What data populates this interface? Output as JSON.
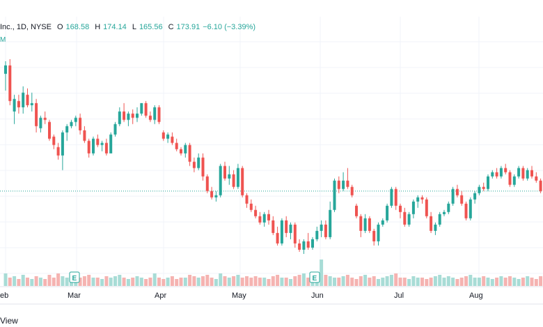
{
  "legend": {
    "symbol": "Inc., 1D, NYSE",
    "o_label": "O",
    "o_value": "168.58",
    "h_label": "H",
    "h_value": "174.14",
    "l_label": "L",
    "l_value": "165.56",
    "c_label": "C",
    "c_value": "173.91",
    "change": "−6.10 (−3.39%)",
    "volume_flag": "M"
  },
  "footer": {
    "text": "View"
  },
  "colors": {
    "up": "#26a69a",
    "down": "#ef5350",
    "grid": "#f0f3fa",
    "last_price_line": "#26a69a"
  },
  "chart_data": {
    "type": "candlestick",
    "title": "",
    "x_tick_labels": [
      "eb",
      "Mar",
      "Apr",
      "May",
      "Jun",
      "Jul",
      "Aug"
    ],
    "earnings_markers": [
      {
        "label": "E",
        "after_month": "Mar"
      },
      {
        "label": "E",
        "after_month": "May"
      }
    ],
    "candles": [
      {
        "o": 196,
        "h": 202,
        "l": 188,
        "c": 200
      },
      {
        "o": 200,
        "h": 203,
        "l": 181,
        "c": 183
      },
      {
        "o": 178,
        "h": 186,
        "l": 172,
        "c": 184
      },
      {
        "o": 183,
        "h": 186,
        "l": 177,
        "c": 180
      },
      {
        "o": 180,
        "h": 190,
        "l": 177,
        "c": 187
      },
      {
        "o": 186,
        "h": 189,
        "l": 180,
        "c": 181
      },
      {
        "o": 181,
        "h": 187,
        "l": 178,
        "c": 182
      },
      {
        "o": 182,
        "h": 184,
        "l": 168,
        "c": 171
      },
      {
        "o": 170,
        "h": 176,
        "l": 168,
        "c": 175
      },
      {
        "o": 175,
        "h": 178,
        "l": 172,
        "c": 174
      },
      {
        "o": 173,
        "h": 174,
        "l": 164,
        "c": 165
      },
      {
        "o": 166,
        "h": 167,
        "l": 160,
        "c": 162
      },
      {
        "o": 161,
        "h": 163,
        "l": 155,
        "c": 157
      },
      {
        "o": 157,
        "h": 169,
        "l": 150,
        "c": 168
      },
      {
        "o": 168,
        "h": 172,
        "l": 164,
        "c": 171
      },
      {
        "o": 171,
        "h": 174,
        "l": 170,
        "c": 173
      },
      {
        "o": 173,
        "h": 176,
        "l": 171,
        "c": 175
      },
      {
        "o": 175,
        "h": 177,
        "l": 167,
        "c": 169
      },
      {
        "o": 169,
        "h": 171,
        "l": 163,
        "c": 164
      },
      {
        "o": 164,
        "h": 165,
        "l": 156,
        "c": 158
      },
      {
        "o": 158,
        "h": 166,
        "l": 157,
        "c": 165
      },
      {
        "o": 165,
        "h": 167,
        "l": 161,
        "c": 162
      },
      {
        "o": 162,
        "h": 164,
        "l": 159,
        "c": 163
      },
      {
        "o": 163,
        "h": 165,
        "l": 157,
        "c": 158
      },
      {
        "o": 158,
        "h": 168,
        "l": 158,
        "c": 167
      },
      {
        "o": 167,
        "h": 173,
        "l": 166,
        "c": 172
      },
      {
        "o": 172,
        "h": 180,
        "l": 171,
        "c": 178
      },
      {
        "o": 178,
        "h": 182,
        "l": 173,
        "c": 174
      },
      {
        "o": 174,
        "h": 178,
        "l": 171,
        "c": 177
      },
      {
        "o": 177,
        "h": 179,
        "l": 172,
        "c": 175
      },
      {
        "o": 175,
        "h": 180,
        "l": 173,
        "c": 177
      },
      {
        "o": 177,
        "h": 182,
        "l": 176,
        "c": 182
      },
      {
        "o": 182,
        "h": 183,
        "l": 175,
        "c": 176
      },
      {
        "o": 176,
        "h": 178,
        "l": 173,
        "c": 174
      },
      {
        "o": 174,
        "h": 181,
        "l": 172,
        "c": 180
      },
      {
        "o": 180,
        "h": 181,
        "l": 172,
        "c": 173
      },
      {
        "o": 168,
        "h": 169,
        "l": 164,
        "c": 165
      },
      {
        "o": 165,
        "h": 168,
        "l": 163,
        "c": 167
      },
      {
        "o": 166,
        "h": 168,
        "l": 162,
        "c": 163
      },
      {
        "o": 163,
        "h": 165,
        "l": 159,
        "c": 160
      },
      {
        "o": 160,
        "h": 161,
        "l": 157,
        "c": 158
      },
      {
        "o": 158,
        "h": 163,
        "l": 156,
        "c": 162
      },
      {
        "o": 162,
        "h": 163,
        "l": 152,
        "c": 154
      },
      {
        "o": 154,
        "h": 156,
        "l": 149,
        "c": 151
      },
      {
        "o": 151,
        "h": 158,
        "l": 150,
        "c": 156
      },
      {
        "o": 156,
        "h": 158,
        "l": 145,
        "c": 147
      },
      {
        "o": 147,
        "h": 148,
        "l": 139,
        "c": 140
      },
      {
        "o": 140,
        "h": 142,
        "l": 136,
        "c": 137
      },
      {
        "o": 137,
        "h": 140,
        "l": 135,
        "c": 138
      },
      {
        "o": 138,
        "h": 153,
        "l": 137,
        "c": 152
      },
      {
        "o": 152,
        "h": 154,
        "l": 145,
        "c": 146
      },
      {
        "o": 146,
        "h": 152,
        "l": 143,
        "c": 148
      },
      {
        "o": 148,
        "h": 150,
        "l": 141,
        "c": 142
      },
      {
        "o": 142,
        "h": 153,
        "l": 141,
        "c": 151
      },
      {
        "o": 151,
        "h": 152,
        "l": 137,
        "c": 138
      },
      {
        "o": 138,
        "h": 139,
        "l": 132,
        "c": 134
      },
      {
        "o": 134,
        "h": 136,
        "l": 130,
        "c": 131
      },
      {
        "o": 131,
        "h": 133,
        "l": 127,
        "c": 128
      },
      {
        "o": 128,
        "h": 130,
        "l": 124,
        "c": 125
      },
      {
        "o": 125,
        "h": 130,
        "l": 123,
        "c": 129
      },
      {
        "o": 129,
        "h": 131,
        "l": 124,
        "c": 126
      },
      {
        "o": 126,
        "h": 128,
        "l": 119,
        "c": 120
      },
      {
        "o": 120,
        "h": 123,
        "l": 114,
        "c": 115
      },
      {
        "o": 115,
        "h": 127,
        "l": 114,
        "c": 126
      },
      {
        "o": 126,
        "h": 128,
        "l": 118,
        "c": 120
      },
      {
        "o": 120,
        "h": 125,
        "l": 117,
        "c": 124
      },
      {
        "o": 124,
        "h": 125,
        "l": 113,
        "c": 115
      },
      {
        "o": 115,
        "h": 117,
        "l": 111,
        "c": 112
      },
      {
        "o": 112,
        "h": 117,
        "l": 110,
        "c": 116
      },
      {
        "o": 116,
        "h": 120,
        "l": 112,
        "c": 113
      },
      {
        "o": 113,
        "h": 118,
        "l": 112,
        "c": 117
      },
      {
        "o": 117,
        "h": 123,
        "l": 116,
        "c": 121
      },
      {
        "o": 121,
        "h": 126,
        "l": 118,
        "c": 124
      },
      {
        "o": 124,
        "h": 126,
        "l": 117,
        "c": 118
      },
      {
        "o": 118,
        "h": 135,
        "l": 117,
        "c": 131
      },
      {
        "o": 131,
        "h": 146,
        "l": 130,
        "c": 145
      },
      {
        "o": 145,
        "h": 147,
        "l": 139,
        "c": 141
      },
      {
        "o": 141,
        "h": 149,
        "l": 140,
        "c": 145
      },
      {
        "o": 145,
        "h": 151,
        "l": 141,
        "c": 142
      },
      {
        "o": 142,
        "h": 143,
        "l": 137,
        "c": 138
      },
      {
        "o": 133,
        "h": 134,
        "l": 127,
        "c": 128
      },
      {
        "o": 128,
        "h": 129,
        "l": 118,
        "c": 121
      },
      {
        "o": 121,
        "h": 129,
        "l": 120,
        "c": 127
      },
      {
        "o": 127,
        "h": 128,
        "l": 120,
        "c": 121
      },
      {
        "o": 121,
        "h": 122,
        "l": 114,
        "c": 116
      },
      {
        "o": 116,
        "h": 125,
        "l": 114,
        "c": 124
      },
      {
        "o": 124,
        "h": 127,
        "l": 123,
        "c": 126
      },
      {
        "o": 126,
        "h": 134,
        "l": 125,
        "c": 133
      },
      {
        "o": 133,
        "h": 142,
        "l": 132,
        "c": 141
      },
      {
        "o": 141,
        "h": 142,
        "l": 131,
        "c": 133
      },
      {
        "o": 133,
        "h": 134,
        "l": 127,
        "c": 130
      },
      {
        "o": 130,
        "h": 132,
        "l": 123,
        "c": 124
      },
      {
        "o": 124,
        "h": 130,
        "l": 123,
        "c": 129
      },
      {
        "o": 129,
        "h": 136,
        "l": 127,
        "c": 135
      },
      {
        "o": 135,
        "h": 138,
        "l": 132,
        "c": 137
      },
      {
        "o": 137,
        "h": 138,
        "l": 134,
        "c": 136
      },
      {
        "o": 136,
        "h": 137,
        "l": 127,
        "c": 128
      },
      {
        "o": 128,
        "h": 130,
        "l": 120,
        "c": 121
      },
      {
        "o": 121,
        "h": 125,
        "l": 119,
        "c": 124
      },
      {
        "o": 124,
        "h": 130,
        "l": 123,
        "c": 129
      },
      {
        "o": 129,
        "h": 131,
        "l": 128,
        "c": 130
      },
      {
        "o": 130,
        "h": 135,
        "l": 129,
        "c": 134
      },
      {
        "o": 134,
        "h": 142,
        "l": 133,
        "c": 141
      },
      {
        "o": 141,
        "h": 143,
        "l": 137,
        "c": 138
      },
      {
        "o": 138,
        "h": 140,
        "l": 133,
        "c": 134
      },
      {
        "o": 134,
        "h": 135,
        "l": 126,
        "c": 127
      },
      {
        "o": 127,
        "h": 137,
        "l": 126,
        "c": 136
      },
      {
        "o": 136,
        "h": 140,
        "l": 134,
        "c": 139
      },
      {
        "o": 139,
        "h": 143,
        "l": 138,
        "c": 142
      },
      {
        "o": 142,
        "h": 144,
        "l": 140,
        "c": 141
      },
      {
        "o": 141,
        "h": 148,
        "l": 140,
        "c": 147
      },
      {
        "o": 147,
        "h": 150,
        "l": 146,
        "c": 149
      },
      {
        "o": 149,
        "h": 151,
        "l": 146,
        "c": 147
      },
      {
        "o": 147,
        "h": 152,
        "l": 146,
        "c": 151
      },
      {
        "o": 151,
        "h": 153,
        "l": 148,
        "c": 149
      },
      {
        "o": 149,
        "h": 150,
        "l": 142,
        "c": 143
      },
      {
        "o": 143,
        "h": 148,
        "l": 142,
        "c": 147
      },
      {
        "o": 147,
        "h": 152,
        "l": 146,
        "c": 151
      },
      {
        "o": 151,
        "h": 152,
        "l": 145,
        "c": 146
      },
      {
        "o": 146,
        "h": 151,
        "l": 145,
        "c": 150
      },
      {
        "o": 150,
        "h": 152,
        "l": 146,
        "c": 147
      },
      {
        "o": 147,
        "h": 149,
        "l": 144,
        "c": 145
      },
      {
        "o": 145,
        "h": 146,
        "l": 139,
        "c": 140
      },
      {
        "o": 140,
        "h": 141,
        "l": 135,
        "c": 136
      },
      {
        "o": 136,
        "h": 141,
        "l": 135,
        "c": 140
      }
    ],
    "volume": [
      9,
      6,
      7,
      5,
      8,
      6,
      5,
      7,
      6,
      5,
      8,
      6,
      9,
      7,
      6,
      6,
      5,
      6,
      7,
      8,
      6,
      6,
      5,
      7,
      6,
      7,
      8,
      6,
      5,
      6,
      7,
      6,
      5,
      6,
      9,
      6,
      5,
      6,
      7,
      5,
      6,
      6,
      8,
      7,
      6,
      7,
      8,
      6,
      5,
      9,
      7,
      6,
      7,
      8,
      6,
      7,
      6,
      7,
      6,
      6,
      5,
      7,
      8,
      6,
      6,
      5,
      7,
      8,
      9,
      6,
      5,
      7,
      19,
      8,
      7,
      6,
      6,
      7,
      8,
      6,
      5,
      7,
      8,
      6,
      7,
      5,
      6,
      7,
      8,
      9,
      6,
      6,
      5,
      7,
      6,
      6,
      5,
      6,
      7,
      8,
      6,
      7,
      6,
      5,
      6,
      7,
      8,
      6,
      6,
      7,
      6,
      5,
      6,
      7,
      6,
      7,
      6,
      5,
      6,
      7,
      6,
      5,
      7,
      6,
      8
    ]
  }
}
